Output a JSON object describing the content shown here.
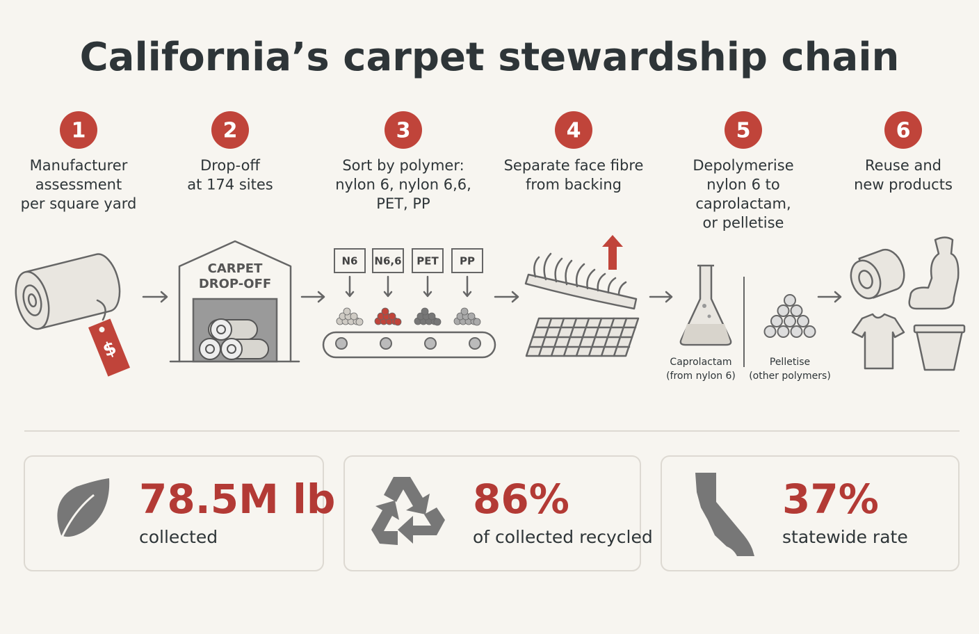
{
  "title": "California’s carpet stewardship chain",
  "steps": [
    {
      "number": 1,
      "label": [
        "Manufacturer",
        "assessment",
        "per square yard"
      ]
    },
    {
      "number": 2,
      "label": [
        "Drop-off",
        "at 174 sites"
      ]
    },
    {
      "number": 3,
      "label": [
        "Sort by polymer:",
        "nylon 6, nylon 6,6,",
        "PET, PP"
      ]
    },
    {
      "number": 4,
      "label": [
        "Separate face fibre",
        "from backing"
      ]
    },
    {
      "number": 5,
      "label": [
        "Depolymerise",
        "nylon 6 to",
        "caprolactam,",
        "or pelletise"
      ]
    },
    {
      "number": 6,
      "label": [
        "Reuse and",
        "new products"
      ]
    }
  ],
  "icons": {
    "price_tag": "$",
    "drop_off_sign": [
      "CARPET",
      "DROP-OFF"
    ],
    "polymer_bins": [
      "N6",
      "N6,6",
      "PET",
      "PP"
    ],
    "outputs": [
      {
        "name": "Caprolactam",
        "note": "(from nylon 6)"
      },
      {
        "name": "Pelletise",
        "note": "(other polymers)"
      }
    ]
  },
  "stats": [
    {
      "value": "78.5M lb",
      "caption": "collected"
    },
    {
      "value": "86%",
      "caption": "of collected recycled"
    },
    {
      "value": "37%",
      "caption": "statewide rate"
    }
  ]
}
